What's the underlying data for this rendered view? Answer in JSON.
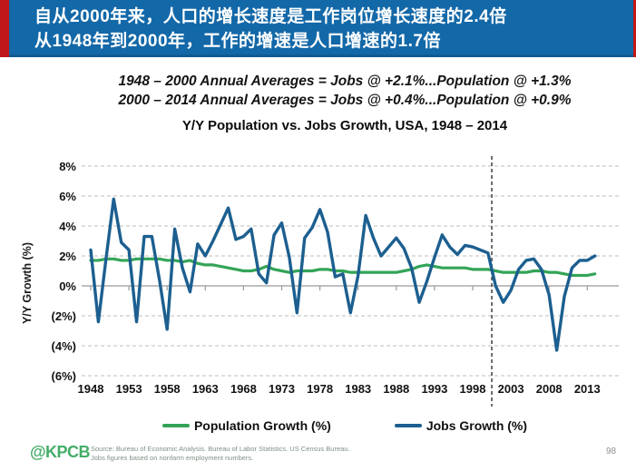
{
  "banner": {
    "line1": "自从2000年来，人口的增长速度是工作岗位增长速度的2.4倍",
    "line2": "从1948年到2000年，工作的增速是人口增速的1.7倍",
    "bg_color": "#1368A8",
    "edge_color": "#C01818",
    "text_color": "#FFFFFF"
  },
  "annotations": {
    "line1": "1948 – 2000 Annual Averages = Jobs @ +2.1%...Population @ +1.3%",
    "line2": "2000 – 2014 Annual Averages = Jobs @ +0.4%...Population @ +0.9%"
  },
  "chart_data": {
    "type": "line",
    "title": "Y/Y Population vs. Jobs Growth, USA, 1948 – 2014",
    "xlabel": "",
    "ylabel": "Y/Y Growth (%)",
    "ylim": [
      -6,
      8
    ],
    "grid": "horizontal dashed gridlines every 2%, solid axis line at 0%",
    "legend_position": "bottom",
    "x_start": 1948,
    "x_end": 2014,
    "x_tick_labels": [
      "1948",
      "1953",
      "1958",
      "1963",
      "1968",
      "1973",
      "1978",
      "1983",
      "1988",
      "1993",
      "1998",
      "2003",
      "2008",
      "2013"
    ],
    "y_tick_labels": [
      {
        "label": "8%",
        "value": 8
      },
      {
        "label": "6%",
        "value": 6
      },
      {
        "label": "4%",
        "value": 4
      },
      {
        "label": "2%",
        "value": 2
      },
      {
        "label": "0%",
        "value": 0
      },
      {
        "label": "(2%)",
        "value": -2
      },
      {
        "label": "(4%)",
        "value": -4
      },
      {
        "label": "(6%)",
        "value": -6
      }
    ],
    "dashed_vline_x": 2000.5,
    "years": [
      1948,
      1949,
      1950,
      1951,
      1952,
      1953,
      1954,
      1955,
      1956,
      1957,
      1958,
      1959,
      1960,
      1961,
      1962,
      1963,
      1964,
      1965,
      1966,
      1967,
      1968,
      1969,
      1970,
      1971,
      1972,
      1973,
      1974,
      1975,
      1976,
      1977,
      1978,
      1979,
      1980,
      1981,
      1982,
      1983,
      1984,
      1985,
      1986,
      1987,
      1988,
      1989,
      1990,
      1991,
      1992,
      1993,
      1994,
      1995,
      1996,
      1997,
      1998,
      1999,
      2000,
      2001,
      2002,
      2003,
      2004,
      2005,
      2006,
      2007,
      2008,
      2009,
      2010,
      2011,
      2012,
      2013,
      2014
    ],
    "series": [
      {
        "id": "population-growth",
        "name": "Population Growth (%)",
        "color": "#33A457",
        "values": [
          1.7,
          1.7,
          1.8,
          1.8,
          1.7,
          1.7,
          1.8,
          1.8,
          1.8,
          1.8,
          1.7,
          1.7,
          1.6,
          1.7,
          1.5,
          1.4,
          1.4,
          1.3,
          1.2,
          1.1,
          1.0,
          1.0,
          1.1,
          1.3,
          1.1,
          1.0,
          0.9,
          1.0,
          1.0,
          1.0,
          1.1,
          1.1,
          1.0,
          1.0,
          0.9,
          0.9,
          0.9,
          0.9,
          0.9,
          0.9,
          0.9,
          1.0,
          1.1,
          1.3,
          1.4,
          1.3,
          1.2,
          1.2,
          1.2,
          1.2,
          1.1,
          1.1,
          1.1,
          1.0,
          0.9,
          0.9,
          0.9,
          0.9,
          1.0,
          1.0,
          0.9,
          0.9,
          0.8,
          0.7,
          0.7,
          0.7,
          0.8
        ]
      },
      {
        "id": "jobs-growth",
        "name": "Jobs Growth (%)",
        "color": "#1C5F90",
        "values": [
          2.4,
          -2.4,
          1.8,
          5.8,
          2.9,
          2.4,
          -2.4,
          3.3,
          3.3,
          0.4,
          -2.9,
          3.8,
          1.2,
          -0.4,
          2.8,
          2.0,
          3.0,
          4.1,
          5.2,
          3.1,
          3.3,
          3.8,
          0.8,
          0.2,
          3.4,
          4.2,
          1.9,
          -1.8,
          3.2,
          3.9,
          5.1,
          3.6,
          0.6,
          0.8,
          -1.8,
          0.7,
          4.7,
          3.2,
          2.0,
          2.6,
          3.2,
          2.5,
          1.2,
          -1.1,
          0.3,
          1.9,
          3.4,
          2.6,
          2.1,
          2.7,
          2.6,
          2.4,
          2.2,
          0.0,
          -1.1,
          -0.3,
          1.1,
          1.7,
          1.8,
          1.1,
          -0.6,
          -4.3,
          -0.7,
          1.2,
          1.7,
          1.7,
          2.0
        ]
      }
    ]
  },
  "legend": {
    "items": [
      {
        "label": "Population Growth (%)",
        "color": "#33A457"
      },
      {
        "label": "Jobs Growth (%)",
        "color": "#1C5F90"
      }
    ]
  },
  "footer": {
    "logo": "@KPCB",
    "source_line1": "Source: Bureau of Economic Analysis. Bureau of Labor Statistics. US Census Bureau.",
    "source_line2": "Jobs figures based on nonfarm employment numbers.",
    "page_number": "98"
  }
}
